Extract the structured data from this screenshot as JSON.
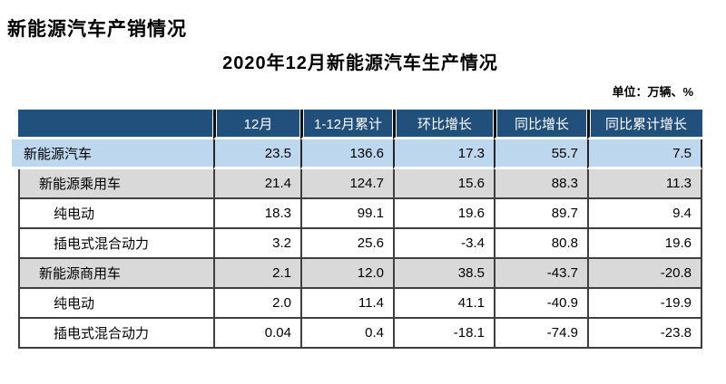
{
  "page": {
    "title": "新能源汽车产销情况",
    "subtitle": "2020年12月新能源汽车生产情况",
    "unit_note": "单位：万辆、%"
  },
  "table": {
    "columns": [
      "",
      "12月",
      "1-12月累计",
      "环比增长",
      "同比增长",
      "同比累计增长"
    ],
    "rows": [
      {
        "label": "新能源汽车",
        "indent": 0,
        "style": "blue",
        "values": [
          "23.5",
          "136.6",
          "17.3",
          "55.7",
          "7.5"
        ]
      },
      {
        "label": "新能源乘用车",
        "indent": 1,
        "style": "gray",
        "values": [
          "21.4",
          "124.7",
          "15.6",
          "88.3",
          "11.3"
        ]
      },
      {
        "label": "纯电动",
        "indent": 2,
        "style": "white",
        "values": [
          "18.3",
          "99.1",
          "19.6",
          "89.7",
          "9.4"
        ]
      },
      {
        "label": "插电式混合动力",
        "indent": 2,
        "style": "white",
        "values": [
          "3.2",
          "25.6",
          "-3.4",
          "80.8",
          "19.6"
        ]
      },
      {
        "label": "新能源商用车",
        "indent": 1,
        "style": "gray",
        "values": [
          "2.1",
          "12.0",
          "38.5",
          "-43.7",
          "-20.8"
        ]
      },
      {
        "label": "纯电动",
        "indent": 2,
        "style": "white",
        "values": [
          "2.0",
          "11.4",
          "41.1",
          "-40.9",
          "-19.9"
        ]
      },
      {
        "label": "插电式混合动力",
        "indent": 2,
        "style": "white",
        "values": [
          "0.04",
          "0.4",
          "-18.1",
          "-74.9",
          "-23.8"
        ]
      }
    ],
    "colors": {
      "header_bg": "#22507C",
      "header_text": "#FFFFFF",
      "row_highlight": "#BDD7EE",
      "row_gray": "#D9D9D9",
      "border_dark": "#3F3F3F"
    }
  }
}
